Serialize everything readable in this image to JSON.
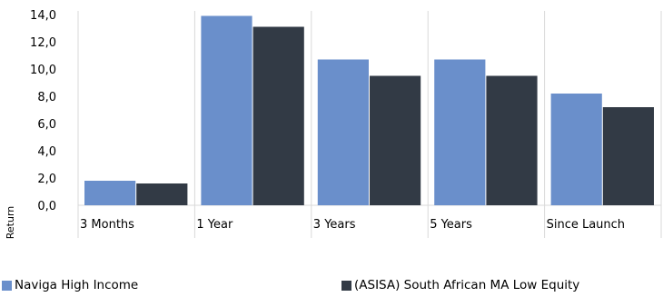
{
  "chart_data": {
    "type": "bar",
    "categories": [
      "3 Months",
      "1 Year",
      "3 Years",
      "5 Years",
      "Since Launch"
    ],
    "series": [
      {
        "name": "Naviga High Income",
        "color": "#6a8fcb",
        "values": [
          1.8,
          13.9,
          10.7,
          10.7,
          8.2
        ]
      },
      {
        "name": "(ASISA) South African MA Low Equity",
        "color": "#323a45",
        "values": [
          1.6,
          13.1,
          9.5,
          9.5,
          7.2
        ]
      }
    ],
    "ylabel": "Return",
    "xlabel": "",
    "ylim": [
      0,
      14
    ],
    "yticks": [
      "0,0",
      "2,0",
      "4,0",
      "6,0",
      "8,0",
      "10,0",
      "12,0",
      "14,0"
    ],
    "grid": "vertical category separators",
    "legend_position": "bottom"
  }
}
